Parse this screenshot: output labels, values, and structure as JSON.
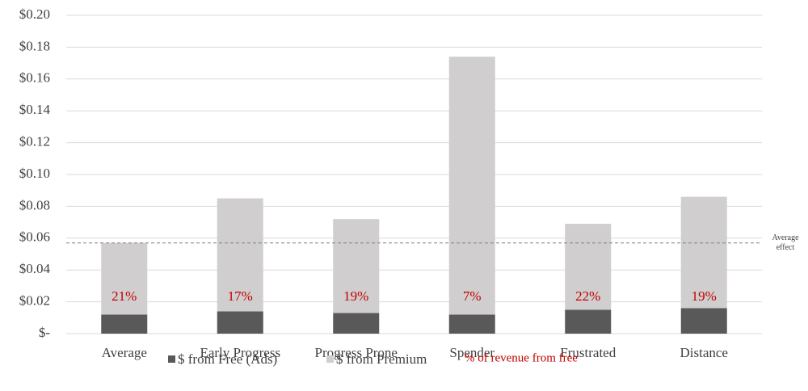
{
  "chart_data": {
    "type": "stacked_bar",
    "categories": [
      "Average",
      "Early Progress",
      "Progress Prone",
      "Spender",
      "Frustrated",
      "Distance"
    ],
    "series": [
      {
        "name": "$ from Free (Ads)",
        "color": "#595959",
        "values": [
          0.012,
          0.014,
          0.013,
          0.012,
          0.015,
          0.016
        ]
      },
      {
        "name": "$ from Premium",
        "color": "#d0cece",
        "values": [
          0.045,
          0.071,
          0.059,
          0.162,
          0.054,
          0.07
        ]
      }
    ],
    "percent_labels": {
      "name": "% of revenue from free",
      "color": "#c00000",
      "values": [
        21,
        17,
        19,
        7,
        22,
        19
      ],
      "value_labels": [
        "21%",
        "17%",
        "19%",
        "7%",
        "22%",
        "19%"
      ]
    },
    "reference_line": {
      "value": 0.057,
      "label": [
        "Average",
        "effect"
      ]
    },
    "ylim": [
      0,
      0.2
    ],
    "yticks": [
      {
        "value": 0,
        "label": "$-"
      },
      {
        "value": 0.02,
        "label": "$0.02"
      },
      {
        "value": 0.04,
        "label": "$0.04"
      },
      {
        "value": 0.06,
        "label": "$0.06"
      },
      {
        "value": 0.08,
        "label": "$0.08"
      },
      {
        "value": 0.1,
        "label": "$0.10"
      },
      {
        "value": 0.12,
        "label": "$0.12"
      },
      {
        "value": 0.14,
        "label": "$0.14"
      },
      {
        "value": 0.16,
        "label": "$0.16"
      },
      {
        "value": 0.18,
        "label": "$0.18"
      },
      {
        "value": 0.2,
        "label": "$0.20"
      }
    ],
    "grid": true
  }
}
